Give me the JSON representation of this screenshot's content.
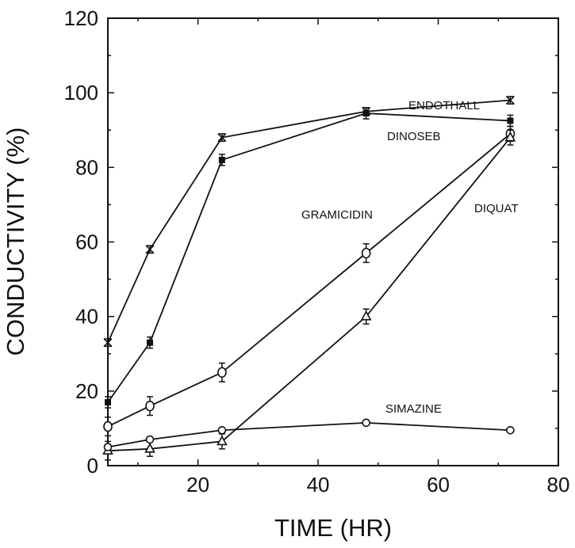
{
  "chart_data": {
    "type": "line",
    "xlabel": "TIME (HR)",
    "ylabel": "CONDUCTIVITY (%)",
    "xlim": [
      5,
      80
    ],
    "ylim": [
      0,
      120
    ],
    "xticks": [
      20,
      40,
      60,
      80
    ],
    "yticks": [
      0,
      20,
      40,
      60,
      80,
      100,
      120
    ],
    "legend": "inline labels",
    "series": [
      {
        "name": "ENDOTHALL",
        "marker": "x",
        "x": [
          5,
          12,
          24,
          48,
          72
        ],
        "y": [
          33,
          58,
          88,
          95,
          98
        ],
        "err": [
          1,
          1,
          1,
          1,
          1
        ]
      },
      {
        "name": "DINOSEB",
        "marker": "square-filled",
        "x": [
          5,
          12,
          24,
          48,
          72
        ],
        "y": [
          17,
          33,
          82,
          94.5,
          92.5
        ],
        "err": [
          1.5,
          1.5,
          1.5,
          1.5,
          1.5
        ]
      },
      {
        "name": "GRAMICIDIN",
        "marker": "diamond-open",
        "x": [
          5,
          12,
          24,
          48,
          72
        ],
        "y": [
          10.5,
          16,
          25,
          57,
          89
        ],
        "err": [
          2.5,
          2.5,
          2.5,
          2.5,
          2
        ]
      },
      {
        "name": "DIQUAT",
        "marker": "triangle-open",
        "x": [
          5,
          12,
          24,
          48,
          72
        ],
        "y": [
          4,
          4.5,
          6.5,
          40,
          88
        ],
        "err": [
          2.5,
          2,
          2,
          2,
          2
        ]
      },
      {
        "name": "SIMAZINE",
        "marker": "circle-open",
        "x": [
          5,
          12,
          24,
          48,
          72
        ],
        "y": [
          5,
          7,
          9.5,
          11.5,
          9.5
        ],
        "err": [
          0,
          0,
          0,
          0,
          0
        ]
      }
    ]
  }
}
